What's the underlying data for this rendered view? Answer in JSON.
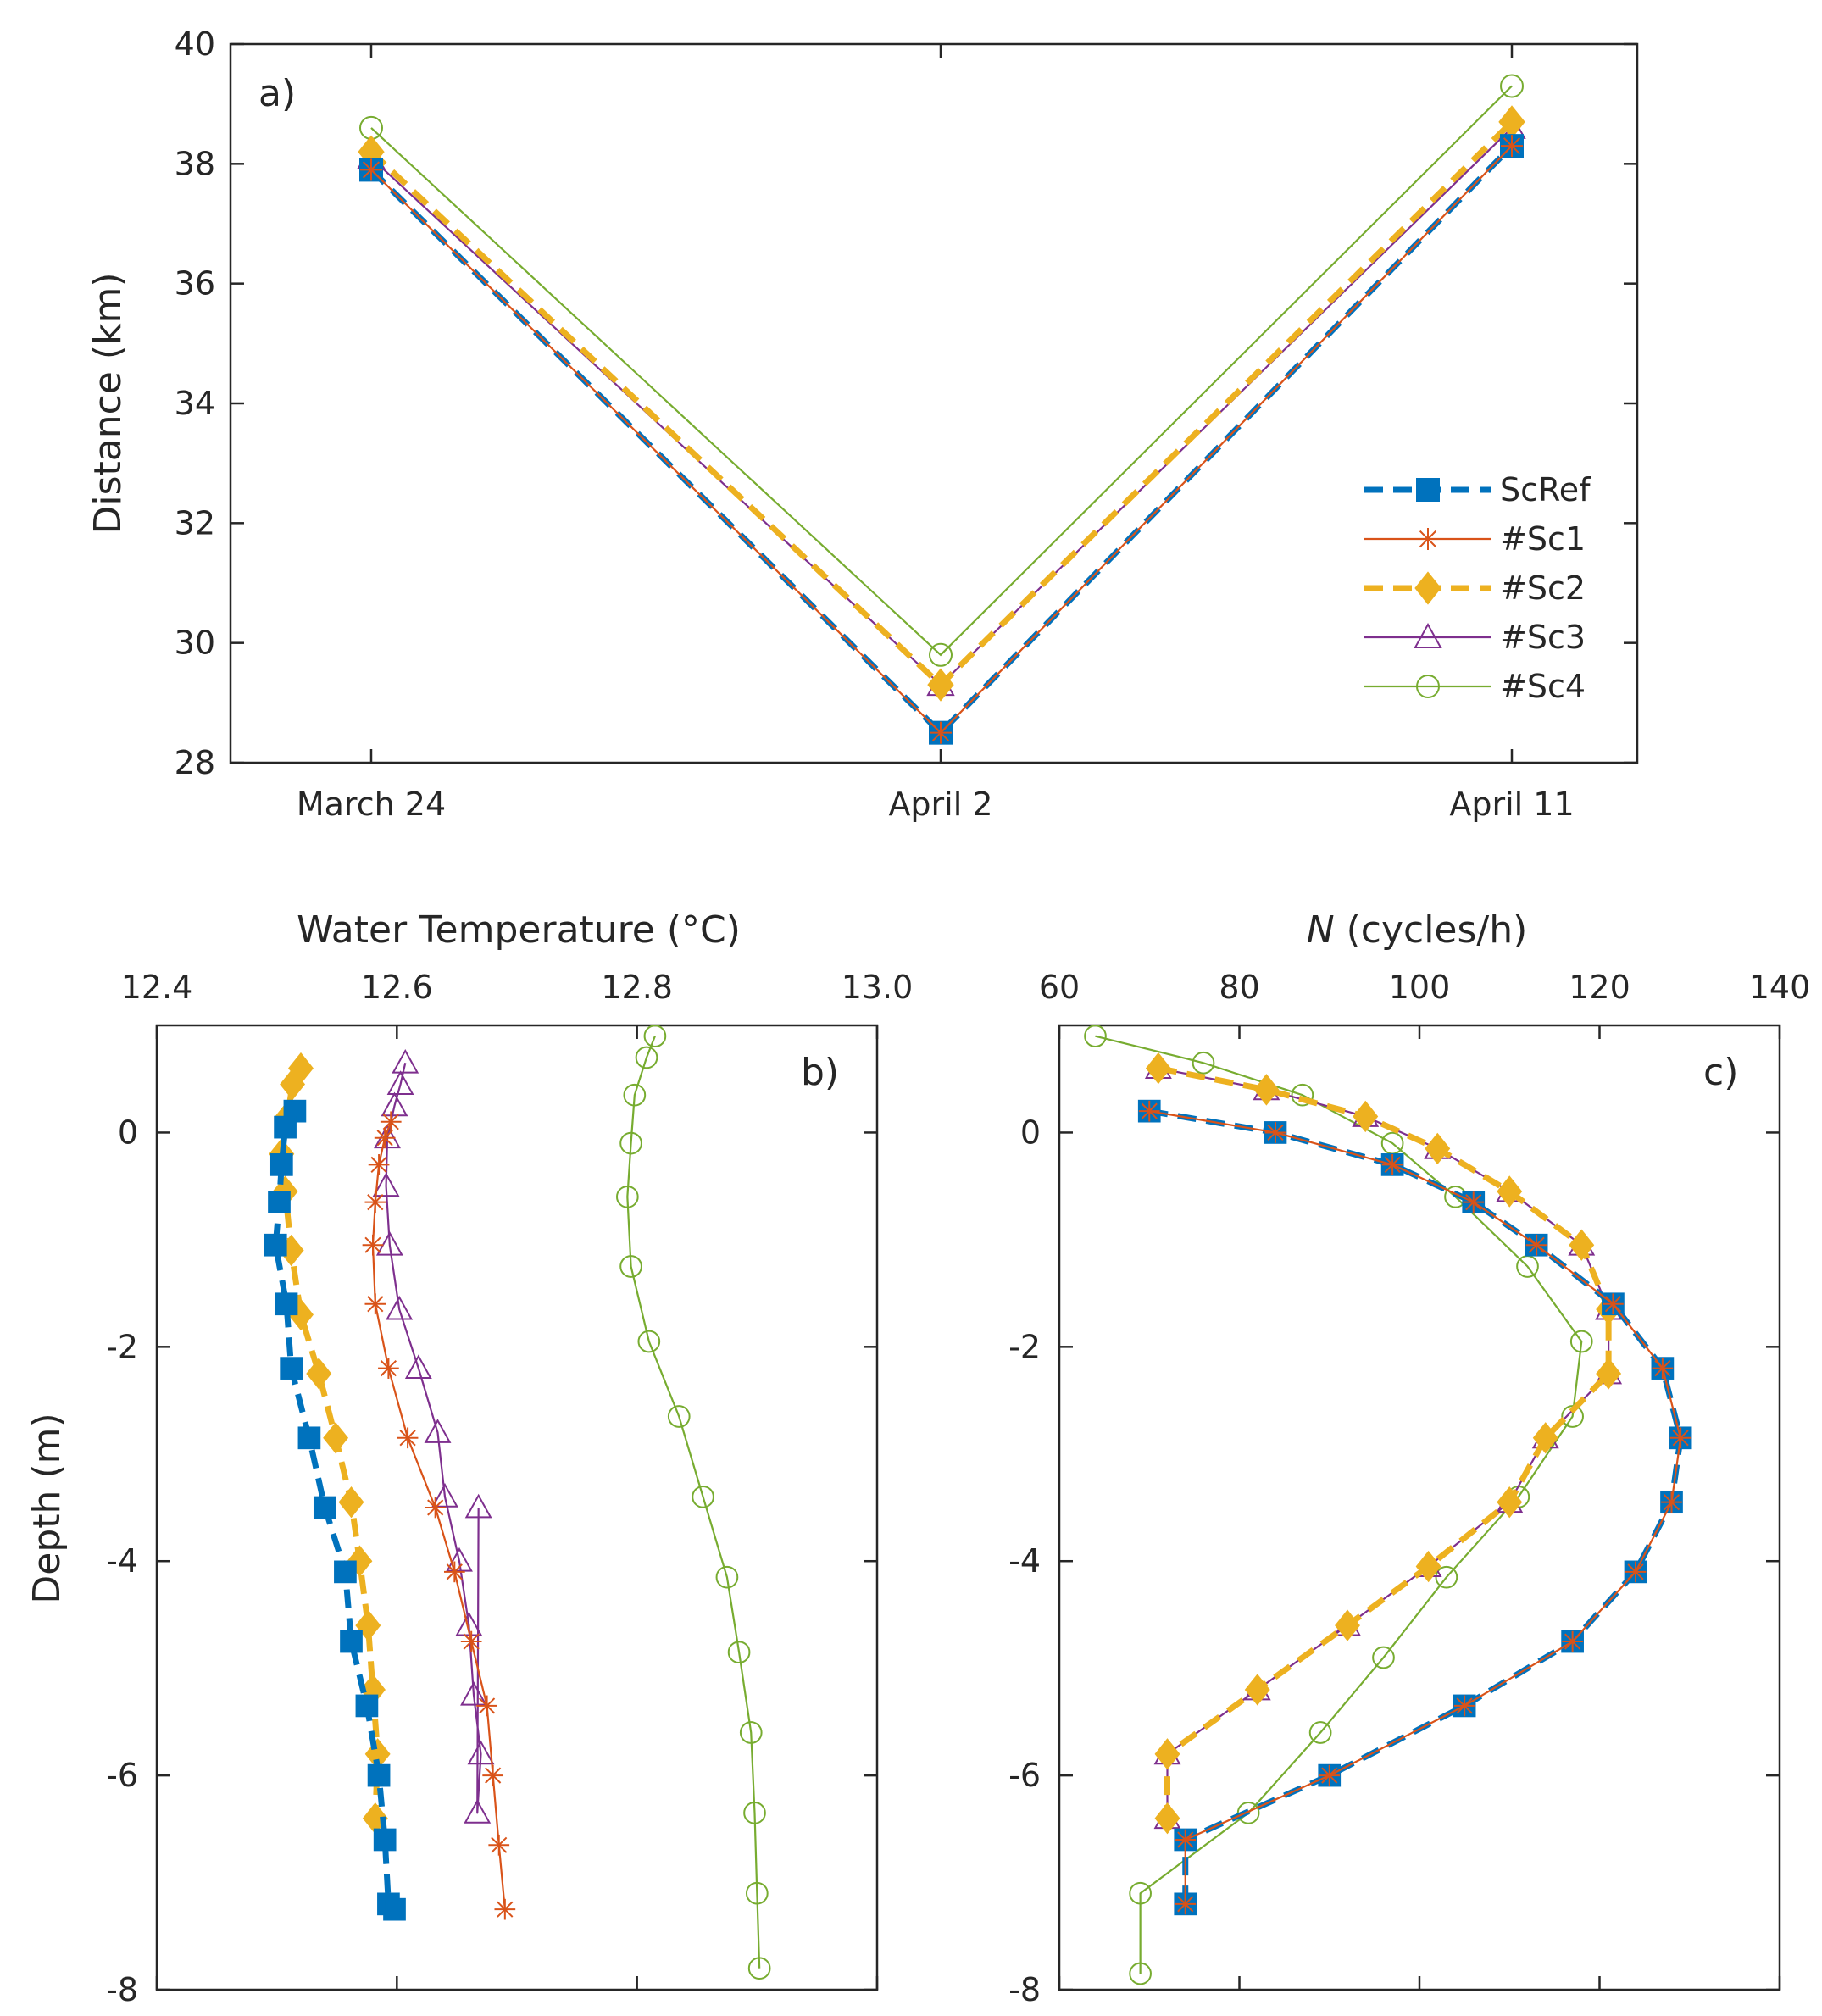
{
  "chart_data": [
    {
      "panel": "a)",
      "type": "line",
      "ylabel": "Distance (km)",
      "xlabel": "",
      "categories": [
        "March 24",
        "April 2",
        "April 11"
      ],
      "ylim": [
        28,
        40
      ],
      "yticks": [
        28,
        30,
        32,
        34,
        36,
        38,
        40
      ],
      "series": [
        {
          "name": "ScRef",
          "values": [
            37.9,
            28.5,
            38.3
          ]
        },
        {
          "name": "#Sc1",
          "values": [
            37.9,
            28.5,
            38.3
          ]
        },
        {
          "name": "#Sc2",
          "values": [
            38.2,
            29.3,
            38.7
          ]
        },
        {
          "name": "#Sc3",
          "values": [
            38.1,
            29.3,
            38.6
          ]
        },
        {
          "name": "#Sc4",
          "values": [
            38.6,
            29.8,
            39.3
          ]
        }
      ],
      "legend": {
        "position": "lower-right",
        "entries": [
          "ScRef",
          "#Sc1",
          "#Sc2",
          "#Sc3",
          "#Sc4"
        ]
      }
    },
    {
      "panel": "b)",
      "type": "line",
      "xlabel": "Water Temperature (°C)",
      "ylabel": "Depth (m)",
      "xlim": [
        12.4,
        13.0
      ],
      "xticks": [
        "12.4",
        "12.6",
        "12.8",
        "13.0"
      ],
      "ylim": [
        -8,
        1
      ],
      "yticks": [
        0,
        -2,
        -4,
        -6,
        -8
      ],
      "series": [
        {
          "name": "ScRef",
          "x": [
            12.515,
            12.507,
            12.504,
            12.502,
            12.499,
            12.508,
            12.512,
            12.527,
            12.54,
            12.557,
            12.562,
            12.575,
            12.585,
            12.59,
            12.593,
            12.598
          ],
          "y": [
            0.2,
            0.05,
            -0.3,
            -0.65,
            -1.05,
            -1.6,
            -2.2,
            -2.85,
            -3.5,
            -4.1,
            -4.75,
            -5.35,
            -6.0,
            -6.6,
            -7.2,
            -7.25
          ]
        },
        {
          "name": "#Sc1",
          "x": [
            12.595,
            12.59,
            12.585,
            12.582,
            12.58,
            12.582,
            12.593,
            12.609,
            12.632,
            12.648,
            12.662,
            12.675,
            12.68,
            12.685,
            12.69
          ],
          "y": [
            0.1,
            -0.05,
            -0.3,
            -0.65,
            -1.05,
            -1.6,
            -2.2,
            -2.85,
            -3.5,
            -4.1,
            -4.75,
            -5.35,
            -6.0,
            -6.65,
            -7.25
          ]
        },
        {
          "name": "#Sc2",
          "x": [
            12.52,
            12.513,
            12.509,
            12.504,
            12.507,
            12.512,
            12.52,
            12.535,
            12.549,
            12.562,
            12.569,
            12.576,
            12.58,
            12.584,
            12.582
          ],
          "y": [
            0.6,
            0.45,
            0.15,
            -0.2,
            -0.55,
            -1.1,
            -1.7,
            -2.25,
            -2.85,
            -3.45,
            -4.0,
            -4.6,
            -5.2,
            -5.8,
            -6.4
          ]
        },
        {
          "name": "#Sc3",
          "x": [
            12.607,
            12.603,
            12.598,
            12.592,
            12.591,
            12.594,
            12.602,
            12.618,
            12.634,
            12.64,
            12.652,
            12.66,
            12.664,
            12.67,
            12.667,
            12.668
          ],
          "y": [
            0.65,
            0.45,
            0.25,
            -0.05,
            -0.5,
            -1.05,
            -1.65,
            -2.2,
            -2.8,
            -3.4,
            -4.0,
            -4.6,
            -5.25,
            -5.8,
            -6.35,
            -3.5
          ]
        },
        {
          "name": "#Sc4",
          "x": [
            12.815,
            12.808,
            12.798,
            12.795,
            12.792,
            12.795,
            12.81,
            12.835,
            12.855,
            12.875,
            12.885,
            12.895,
            12.898,
            12.9,
            12.902
          ],
          "y": [
            0.9,
            0.7,
            0.35,
            -0.1,
            -0.6,
            -1.25,
            -1.95,
            -2.65,
            -3.4,
            -4.15,
            -4.85,
            -5.6,
            -6.35,
            -7.1,
            -7.8
          ]
        }
      ]
    },
    {
      "panel": "c)",
      "type": "line",
      "xlabel": "N (cycles/h)",
      "xlabel_italic": "N",
      "xlabel_rest": " (cycles/h)",
      "ylabel": "",
      "xlim": [
        60,
        140
      ],
      "xticks": [
        "60",
        "80",
        "100",
        "120",
        "140"
      ],
      "ylim": [
        -8,
        1
      ],
      "yticks": [
        0,
        -2,
        -4,
        -6,
        -8
      ],
      "series": [
        {
          "name": "ScRef",
          "x": [
            70,
            84,
            97,
            106,
            113,
            121.5,
            127,
            129,
            128,
            124,
            117,
            105,
            90,
            74,
            74
          ],
          "y": [
            0.2,
            0.0,
            -0.3,
            -0.65,
            -1.05,
            -1.6,
            -2.2,
            -2.85,
            -3.45,
            -4.1,
            -4.75,
            -5.35,
            -6.0,
            -6.6,
            -7.2
          ]
        },
        {
          "name": "#Sc1",
          "x": [
            70,
            84,
            97,
            106,
            113,
            121.5,
            127,
            129,
            128,
            124,
            117,
            105,
            90,
            74,
            74
          ],
          "y": [
            0.2,
            0.0,
            -0.3,
            -0.65,
            -1.05,
            -1.6,
            -2.2,
            -2.85,
            -3.45,
            -4.1,
            -4.75,
            -5.35,
            -6.0,
            -6.6,
            -7.2
          ]
        },
        {
          "name": "#Sc2",
          "x": [
            71,
            83,
            94,
            102,
            110,
            118,
            121,
            121,
            114,
            110,
            101,
            92,
            82,
            72,
            72
          ],
          "y": [
            0.6,
            0.4,
            0.15,
            -0.15,
            -0.55,
            -1.05,
            -1.65,
            -2.25,
            -2.85,
            -3.45,
            -4.05,
            -4.6,
            -5.2,
            -5.8,
            -6.4
          ]
        },
        {
          "name": "#Sc3",
          "x": [
            71,
            83,
            94,
            102,
            110,
            118,
            121,
            121,
            114,
            110,
            101,
            92,
            82,
            72,
            72
          ],
          "y": [
            0.6,
            0.4,
            0.15,
            -0.15,
            -0.55,
            -1.05,
            -1.65,
            -2.25,
            -2.85,
            -3.45,
            -4.05,
            -4.6,
            -5.2,
            -5.8,
            -6.4
          ]
        },
        {
          "name": "#Sc4",
          "x": [
            64,
            76,
            87,
            97,
            104,
            112,
            118,
            117,
            111,
            103,
            96,
            89,
            81,
            69,
            69
          ],
          "y": [
            0.9,
            0.65,
            0.35,
            -0.1,
            -0.6,
            -1.25,
            -1.95,
            -2.65,
            -3.4,
            -4.15,
            -4.9,
            -5.6,
            -6.35,
            -7.1,
            -7.85
          ]
        }
      ]
    }
  ],
  "series_colors": {
    "ScRef": "#0072BD",
    "#Sc1": "#D95319",
    "#Sc2": "#EDB120",
    "#Sc3": "#7E2F8E",
    "#Sc4": "#77AC30"
  }
}
